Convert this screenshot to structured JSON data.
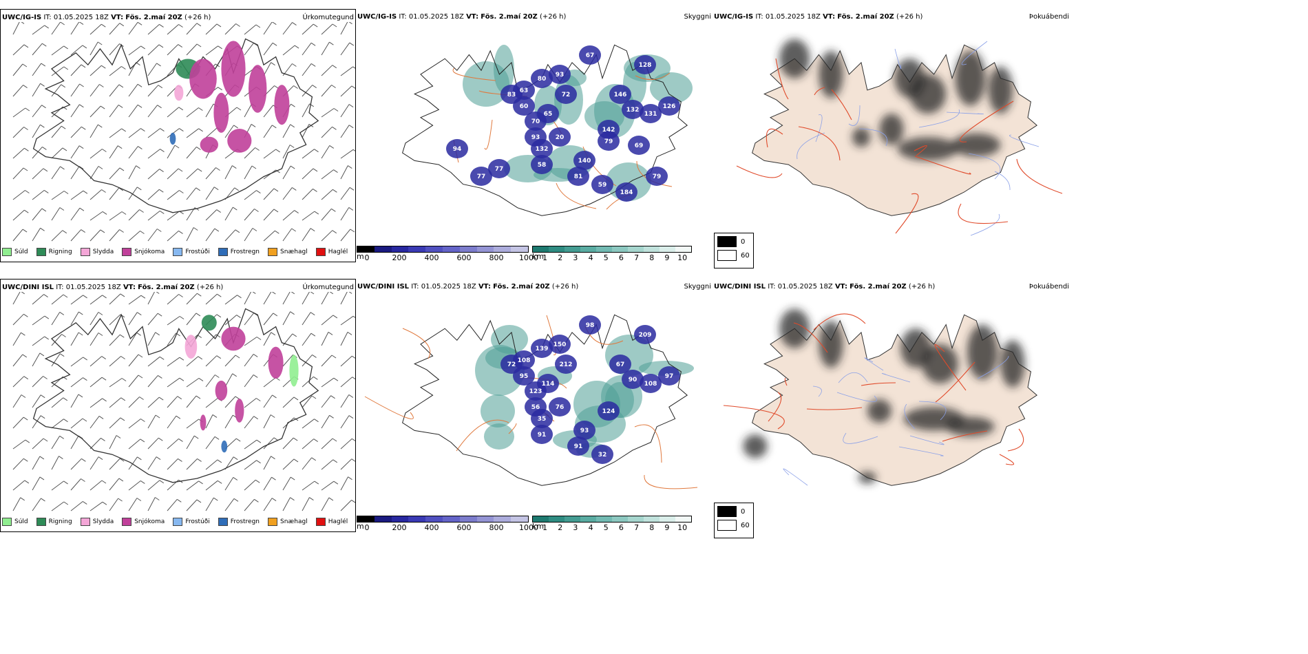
{
  "rows": [
    {
      "model": "UWC/IG-IS",
      "it_label": "IT:",
      "it_value": "01.05.2025 18Z",
      "vt_label": "VT:",
      "vt_value": "Fös. 2.maí 20Z",
      "lead": "(+26 h)",
      "precip_type_title": "Úrkomutegund",
      "visibility_title": "Skyggni",
      "fog_title": "Þokuábendi",
      "depth_labels": [
        "93",
        "67",
        "128",
        "63",
        "80",
        "72",
        "60",
        "65",
        "70",
        "83",
        "146",
        "132",
        "131",
        "126",
        "93",
        "132",
        "20",
        "79",
        "58",
        "140",
        "81",
        "59",
        "184",
        "79",
        "77",
        "77",
        "94",
        "142",
        "69"
      ],
      "km_labels": []
    },
    {
      "model": "UWC/DINI ISL",
      "it_label": "IT:",
      "it_value": "01.05.2025 18Z",
      "vt_label": "VT:",
      "vt_value": "Fös. 2.maí 20Z",
      "lead": "(+26 h)",
      "precip_type_title": "Úrkomutegund",
      "visibility_title": "Skyggni",
      "fog_title": "Þokuábendi",
      "depth_labels": [
        "150",
        "98",
        "209",
        "108",
        "139",
        "212",
        "95",
        "114",
        "123",
        "72",
        "67",
        "90",
        "108",
        "97",
        "56",
        "35",
        "76",
        "124",
        "91",
        "93",
        "91",
        "32"
      ],
      "km_labels": []
    }
  ],
  "precip_legend": [
    {
      "label": "Súld",
      "color": "#90ee90"
    },
    {
      "label": "Rigning",
      "color": "#2e8b57"
    },
    {
      "label": "Slydda",
      "color": "#f4a6d7"
    },
    {
      "label": "Snjókoma",
      "color": "#c0409a"
    },
    {
      "label": "Frostúði",
      "color": "#87b8f0"
    },
    {
      "label": "Frostregn",
      "color": "#2f6db8"
    },
    {
      "label": "Snæhagl",
      "color": "#f0a020"
    },
    {
      "label": "Haglél",
      "color": "#e01010"
    }
  ],
  "depth_scale": {
    "unit": "m",
    "ticks": [
      "0",
      "200",
      "400",
      "600",
      "800",
      "1000"
    ],
    "colors": [
      "#000000",
      "#1a1a80",
      "#2828a0",
      "#3a3ab4",
      "#5050c0",
      "#6464c8",
      "#7c7ccc",
      "#9494d4",
      "#acacdc",
      "#c4c4e4"
    ]
  },
  "km_scale": {
    "unit": "km",
    "ticks": [
      "1",
      "2",
      "3",
      "4",
      "5",
      "6",
      "7",
      "8",
      "9",
      "10"
    ],
    "colors": [
      "#1e7a70",
      "#2f8c82",
      "#449c92",
      "#5aaca2",
      "#72bab2",
      "#8cc8c0",
      "#a6d6ce",
      "#c0e2dc",
      "#daeeea",
      "#f2f8f6"
    ]
  },
  "fog_scale": {
    "items": [
      {
        "label": "0",
        "color": "#000000"
      },
      {
        "label": "60",
        "color": "#ffffff"
      }
    ]
  },
  "colors": {
    "land_fog": "#f3e3d6",
    "road": "#e0783c",
    "river": "#8aa0e8",
    "coast": "#333333",
    "snow": "#c0409a",
    "rain": "#2e8b57",
    "drizzle": "#90ee90",
    "sleet": "#f4a6d7",
    "frz": "#2f6db8",
    "depth": "#2a2aa0",
    "teal": "#4e9e96"
  }
}
